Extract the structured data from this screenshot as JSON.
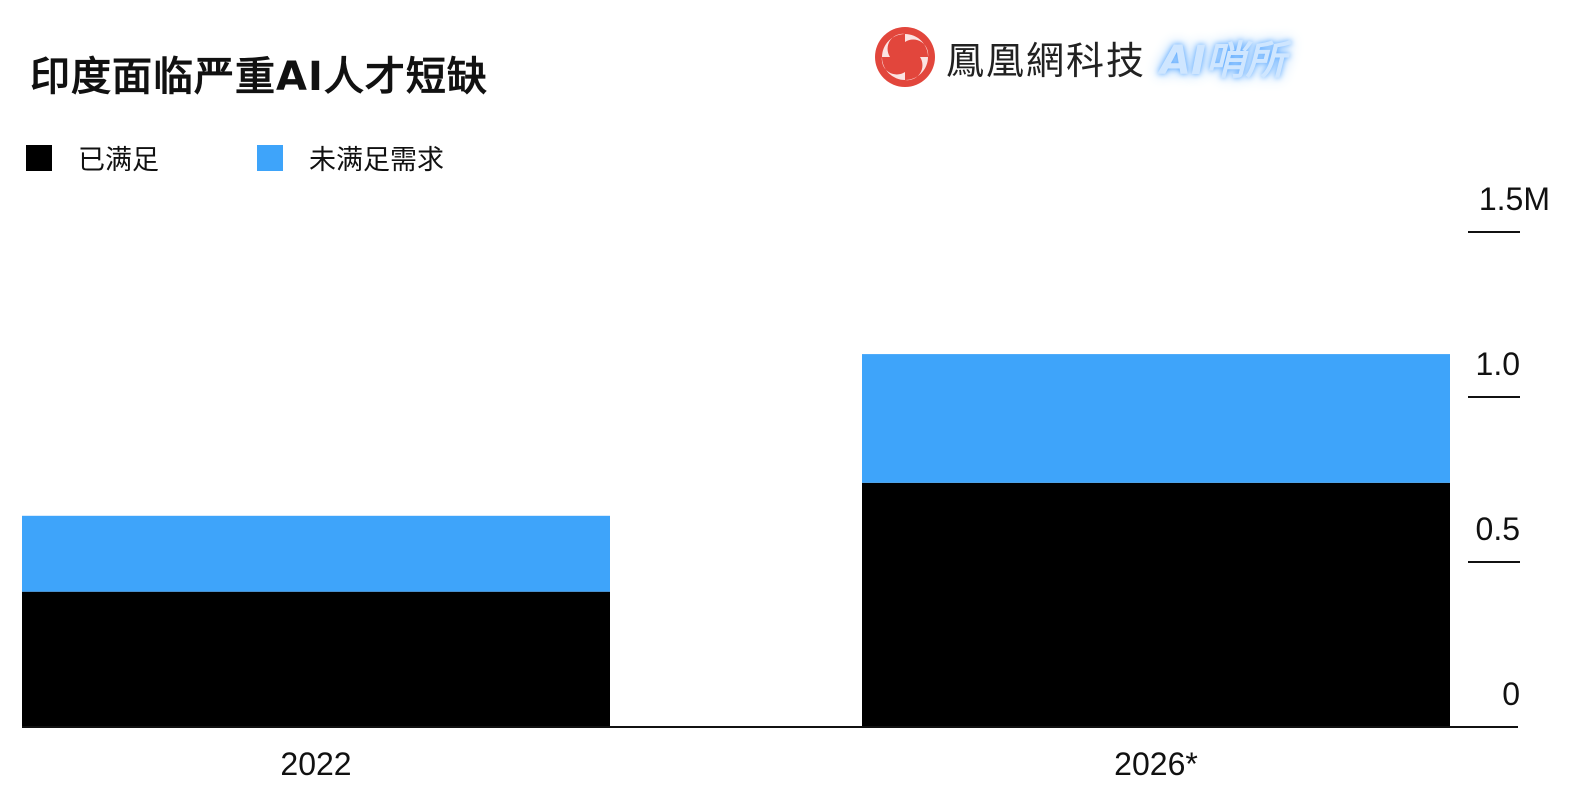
{
  "chart_data": {
    "type": "bar",
    "stacked": true,
    "title": "印度面临严重AI人才短缺",
    "categories": [
      "2022",
      "2026*"
    ],
    "series": [
      {
        "name": "已满足",
        "values": [
          0.41,
          0.74
        ],
        "color": "#000000"
      },
      {
        "name": "未满足需求",
        "values": [
          0.23,
          0.39
        ],
        "color": "#3ea4fa"
      }
    ],
    "yticks": [
      "0",
      "0.5",
      "1.0",
      "1.5M"
    ],
    "ytick_values": [
      0,
      0.5,
      1.0,
      1.5
    ],
    "ylim": [
      0,
      1.5
    ],
    "y_axis_position": "right",
    "legend_position": "top-left",
    "grid": false
  },
  "logo": {
    "brand": "鳳凰網科技",
    "sub": "AI哨所",
    "color": "#e2463c"
  }
}
